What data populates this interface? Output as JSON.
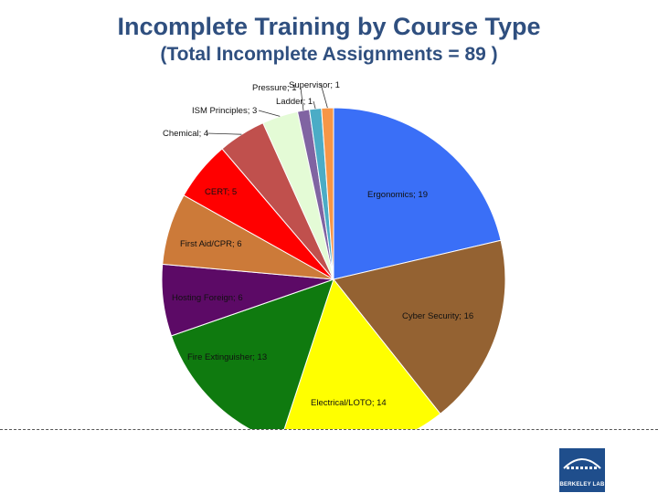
{
  "page": {
    "title": "Incomplete Training by Course Type",
    "subtitle": "(Total Incomplete Assignments = 89 )"
  },
  "logo": {
    "text": "BERKELEY LAB"
  },
  "chart_data": {
    "type": "pie",
    "title": "Incomplete Training by Course Type",
    "subtitle": "(Total Incomplete Assignments = 89 )",
    "total": 89,
    "slices": [
      {
        "label": "Ergonomics; 19",
        "name": "Ergonomics",
        "value": 19,
        "color": "#3a6ff7"
      },
      {
        "label": "Cyber Security; 16",
        "name": "Cyber Security",
        "value": 16,
        "color": "#946232"
      },
      {
        "label": "Electrical/LOTO; 14",
        "name": "Electrical/LOTO",
        "value": 14,
        "color": "#ffff00"
      },
      {
        "label": "Fire Extinguisher; 13",
        "name": "Fire Extinguisher",
        "value": 13,
        "color": "#0f7a0f"
      },
      {
        "label": "Hosting Foreign; 6",
        "name": "Hosting Foreign",
        "value": 6,
        "color": "#5c0a66"
      },
      {
        "label": "First Aid/CPR; 6",
        "name": "First Aid/CPR",
        "value": 6,
        "color": "#cc7a39"
      },
      {
        "label": "CERT; 5",
        "name": "CERT",
        "value": 5,
        "color": "#ff0000"
      },
      {
        "label": "Chemical; 4",
        "name": "Chemical",
        "value": 4,
        "color": "#c0504d"
      },
      {
        "label": "ISM Principles; 3",
        "name": "ISM Principles",
        "value": 3,
        "color": "#e4fbd6"
      },
      {
        "label": "Pressure; 1",
        "name": "Pressure",
        "value": 1,
        "color": "#8064a2"
      },
      {
        "label": "Ladder; 1",
        "name": "Ladder",
        "value": 1,
        "color": "#4bacc6"
      },
      {
        "label": "Supervisor; 1",
        "name": "Supervisor",
        "value": 1,
        "color": "#f79646"
      }
    ]
  }
}
